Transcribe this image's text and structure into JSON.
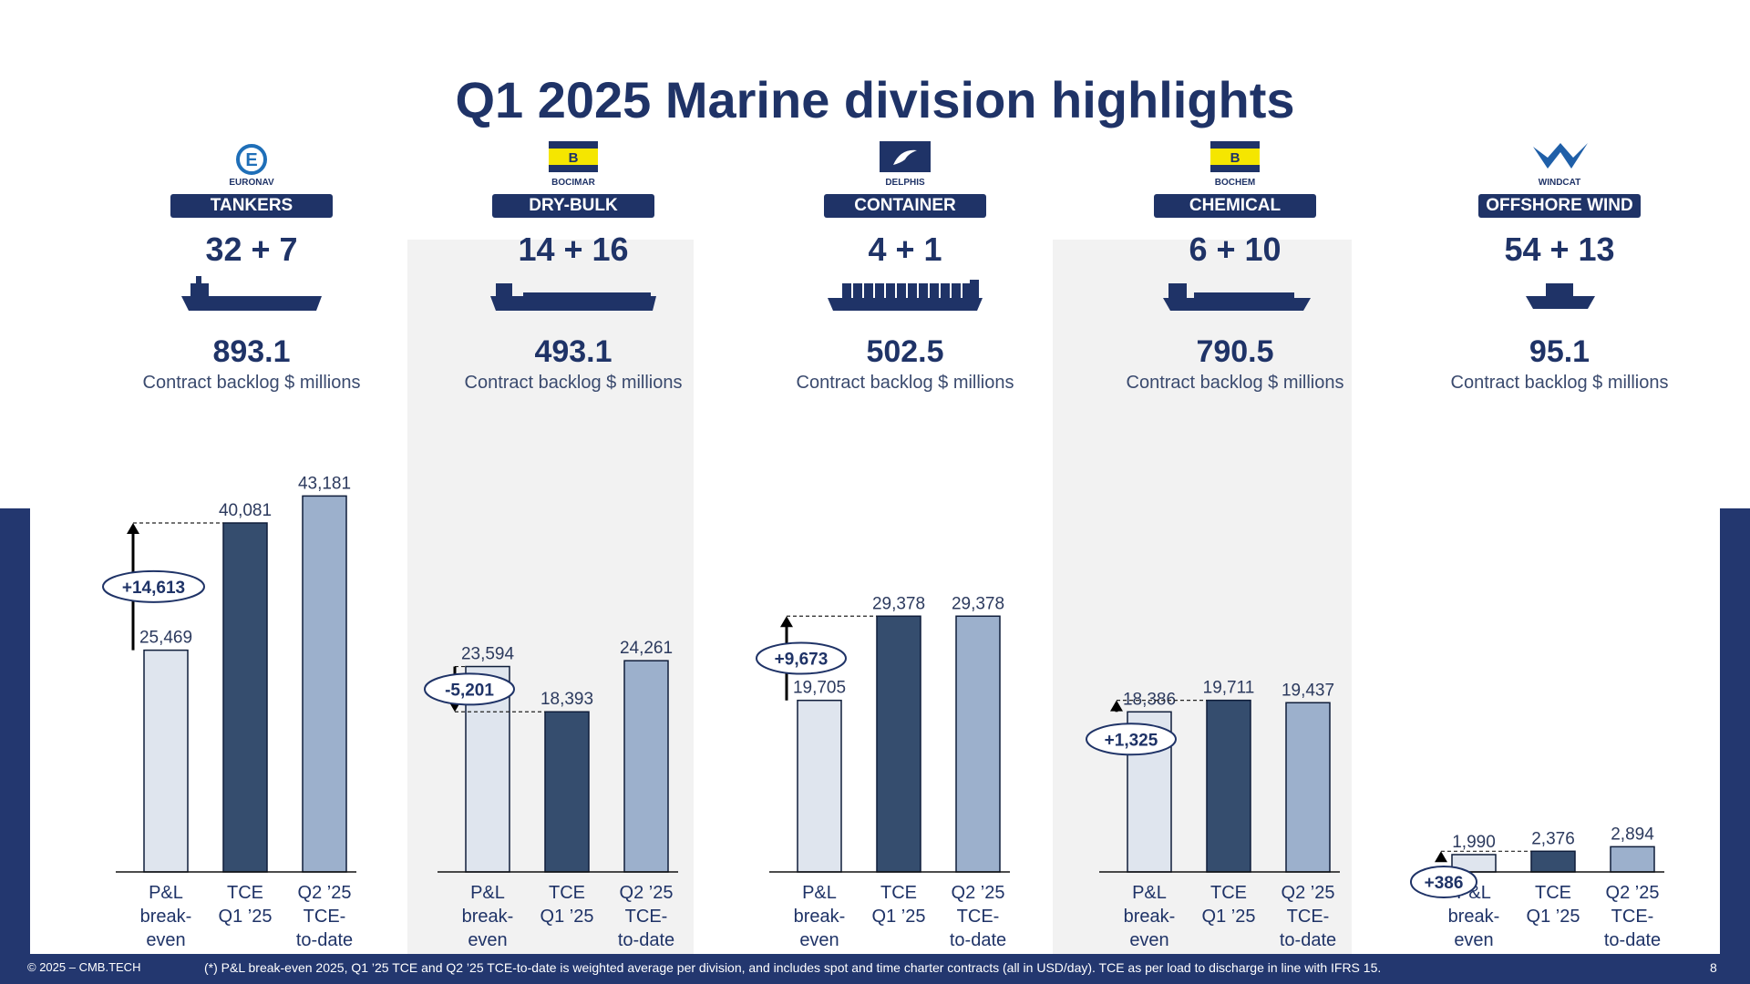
{
  "slide": {
    "title": "Q1 2025 Marine division highlights",
    "footer_copyright": "© 2025 – CMB.TECH",
    "footnote": "(*) P&L break-even 2025, Q1 ’25 TCE and Q2 ’25 TCE-to-date is weighted average per division, and includes spot and time charter contracts (all in USD/day). TCE as per load to discharge in line with IFRS 15.",
    "page_number": "8"
  },
  "colors": {
    "navy": "#1f3367",
    "breakeven_bar": "#dfe5ee",
    "tce_q1_bar": "#354d6e",
    "tce_q2_bar": "#9cb0cc",
    "panel_shade": "#f2f2f2",
    "logo_yellow": "#f5e600"
  },
  "chart_data": [
    {
      "type": "bar",
      "division": "TANKERS",
      "brand": "EURONAV",
      "logo_icon": "euronav-logo-icon",
      "ship_icon": "tanker-ship-icon",
      "fleet": "32 + 7",
      "backlog": "893.1",
      "backlog_label": "Contract backlog $ millions",
      "categories": [
        [
          "P&L",
          "break-",
          "even"
        ],
        [
          "TCE",
          "Q1 ’25"
        ],
        [
          "Q2 ’25",
          "TCE-",
          "to-date"
        ]
      ],
      "values": [
        25469,
        40081,
        43181
      ],
      "value_labels": [
        "25,469",
        "40,081",
        "43,181"
      ],
      "delta": "+14,613",
      "ylim": [
        0,
        45000
      ]
    },
    {
      "type": "bar",
      "division": "DRY-BULK",
      "brand": "BOCIMAR",
      "logo_icon": "bocimar-logo-icon",
      "ship_icon": "bulk-carrier-icon",
      "fleet": "14 + 16",
      "backlog": "493.1",
      "backlog_label": "Contract backlog $ millions",
      "categories": [
        [
          "P&L",
          "break-",
          "even"
        ],
        [
          "TCE",
          "Q1 ’25"
        ],
        [
          "Q2 ’25",
          "TCE-",
          "to-date"
        ]
      ],
      "values": [
        23594,
        18393,
        24261
      ],
      "value_labels": [
        "23,594",
        "18,393",
        "24,261"
      ],
      "delta": "-5,201",
      "ylim": [
        0,
        45000
      ]
    },
    {
      "type": "bar",
      "division": "CONTAINER",
      "brand": "DELPHIS",
      "logo_icon": "delphis-logo-icon",
      "ship_icon": "container-ship-icon",
      "fleet": "4 + 1",
      "backlog": "502.5",
      "backlog_label": "Contract backlog $ millions",
      "categories": [
        [
          "P&L",
          "break-",
          "even"
        ],
        [
          "TCE",
          "Q1 ’25"
        ],
        [
          "Q2 ’25",
          "TCE-",
          "to-date"
        ]
      ],
      "values": [
        19705,
        29378,
        29378
      ],
      "value_labels": [
        "19,705",
        "29,378",
        "29,378"
      ],
      "delta": "+9,673",
      "ylim": [
        0,
        45000
      ]
    },
    {
      "type": "bar",
      "division": "CHEMICAL",
      "brand": "BOCHEM",
      "logo_icon": "bochem-logo-icon",
      "ship_icon": "chemical-tanker-icon",
      "fleet": "6 + 10",
      "backlog": "790.5",
      "backlog_label": "Contract backlog $ millions",
      "categories": [
        [
          "P&L",
          "break-",
          "even"
        ],
        [
          "TCE",
          "Q1 ’25"
        ],
        [
          "Q2 ’25",
          "TCE-",
          "to-date"
        ]
      ],
      "values": [
        18386,
        19711,
        19437
      ],
      "value_labels": [
        "18,386",
        "19,711",
        "19,437"
      ],
      "delta": "+1,325",
      "ylim": [
        0,
        45000
      ]
    },
    {
      "type": "bar",
      "division": "OFFSHORE WIND",
      "brand": "WINDCAT",
      "logo_icon": "windcat-logo-icon",
      "ship_icon": "crew-transfer-vessel-icon",
      "fleet": "54 + 13",
      "backlog": "95.1",
      "backlog_label": "Contract backlog $ millions",
      "categories": [
        [
          "P&L",
          "break-",
          "even"
        ],
        [
          "TCE",
          "Q1 ’25"
        ],
        [
          "Q2 ’25",
          "TCE-",
          "to-date"
        ]
      ],
      "values": [
        1990,
        2376,
        2894
      ],
      "value_labels": [
        "1,990",
        "2,376",
        "2,894"
      ],
      "delta": "+386",
      "ylim": [
        0,
        45000
      ]
    }
  ]
}
